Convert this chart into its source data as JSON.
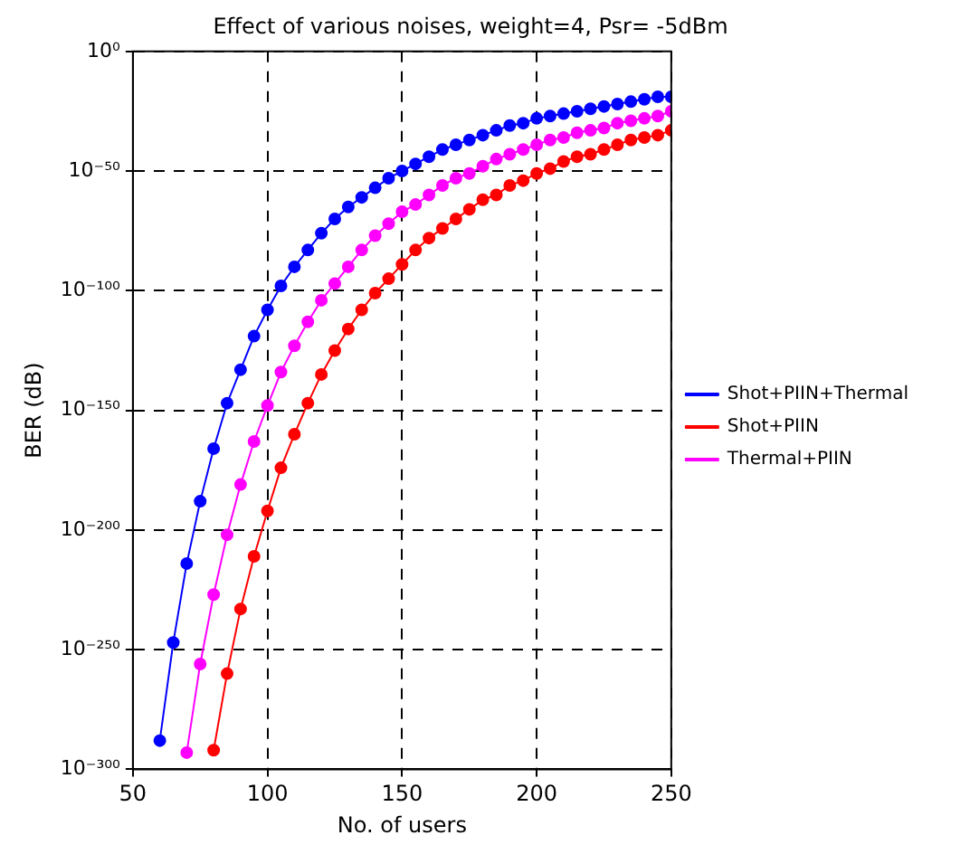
{
  "chart_data": {
    "type": "line",
    "title": "Effect of various noises, weight=4, Psr= -5dBm",
    "xlabel": "No. of users",
    "ylabel": "BER (dB)",
    "log": "y",
    "grid": true,
    "legend": "right",
    "marker": "circle",
    "line_style": "solid",
    "xlim": [
      50,
      250
    ],
    "xticks": [
      50,
      100,
      150,
      200,
      250
    ],
    "ylim": [
      1e-300,
      1
    ],
    "yticks": [
      {
        "value": 1,
        "label": "10⁰"
      },
      {
        "value": 1e-50,
        "label": "10⁻⁵⁰"
      },
      {
        "value": 1e-100,
        "label": "10⁻¹⁰⁰"
      },
      {
        "value": 1e-150,
        "label": "10⁻¹⁵⁰"
      },
      {
        "value": 1e-200,
        "label": "10⁻²⁰⁰"
      },
      {
        "value": 1e-250,
        "label": "10⁻²⁵⁰"
      },
      {
        "value": 1e-300,
        "label": "10⁻³⁰⁰"
      }
    ],
    "series": [
      {
        "name": "Shot+PIIN+Thermal",
        "color": "#0000ff",
        "x": [
          60,
          65,
          70,
          75,
          80,
          85,
          90,
          95,
          100,
          105,
          110,
          115,
          120,
          125,
          130,
          135,
          140,
          145,
          150,
          155,
          160,
          165,
          170,
          175,
          180,
          185,
          190,
          195,
          200,
          205,
          210,
          215,
          220,
          225,
          230,
          235,
          240,
          245,
          250
        ],
        "values": [
          1e-288,
          1e-247,
          1e-214,
          1e-188,
          1e-166,
          1e-147,
          1e-133,
          1e-119,
          1e-108,
          1e-98,
          1e-90,
          1e-83,
          1e-76,
          1e-70,
          1e-65,
          1e-61,
          1e-57,
          1e-53,
          1e-50,
          1e-47,
          1e-44,
          1e-41,
          1e-39,
          1e-37,
          1e-35,
          1e-33,
          1e-31,
          1e-30,
          1e-28,
          1e-27,
          1e-26,
          1e-25,
          1e-24,
          1e-23,
          1e-22,
          1e-21,
          1e-20,
          1e-19,
          1e-19
        ]
      },
      {
        "name": "Shot+PIIN",
        "color": "#ff0000",
        "x": [
          80,
          85,
          90,
          95,
          100,
          105,
          110,
          115,
          120,
          125,
          130,
          135,
          140,
          145,
          150,
          155,
          160,
          165,
          170,
          175,
          180,
          185,
          190,
          195,
          200,
          205,
          210,
          215,
          220,
          225,
          230,
          235,
          240,
          245,
          250
        ],
        "values": [
          1e-292,
          1e-260,
          1e-233,
          1e-211,
          1e-192,
          1e-174,
          1e-160,
          1e-147,
          1e-135,
          1e-125,
          1e-116,
          1e-108,
          1e-101,
          1e-95,
          1e-89,
          1e-83,
          1e-78,
          1e-74,
          1e-70,
          1e-66,
          1e-62,
          1e-60,
          1e-56,
          1e-54,
          1e-51,
          1e-49,
          1e-46,
          1e-44,
          1e-43,
          1e-41,
          1e-39,
          1e-37,
          1e-36,
          1e-35,
          1e-33
        ]
      },
      {
        "name": "Thermal+PIIN",
        "color": "#ff00ff",
        "x": [
          70,
          75,
          80,
          85,
          90,
          95,
          100,
          105,
          110,
          115,
          120,
          125,
          130,
          135,
          140,
          145,
          150,
          155,
          160,
          165,
          170,
          175,
          180,
          185,
          190,
          195,
          200,
          205,
          210,
          215,
          220,
          225,
          230,
          235,
          240,
          245,
          250
        ],
        "values": [
          1e-293,
          1e-256,
          1e-227,
          1e-202,
          1e-181,
          1e-163,
          1e-148,
          1e-134,
          1e-123,
          1e-113,
          1e-104,
          1e-97,
          1e-90,
          1e-83,
          1e-77,
          1e-72,
          1e-67,
          1e-64,
          1e-60,
          1e-56,
          1e-53,
          1e-51,
          1e-48,
          1e-45,
          1e-43,
          1e-41,
          1e-39,
          1e-37,
          1e-36,
          1e-34,
          1e-33,
          1e-32,
          1e-30,
          1e-29,
          1e-28,
          1e-27,
          1e-25
        ]
      }
    ]
  }
}
